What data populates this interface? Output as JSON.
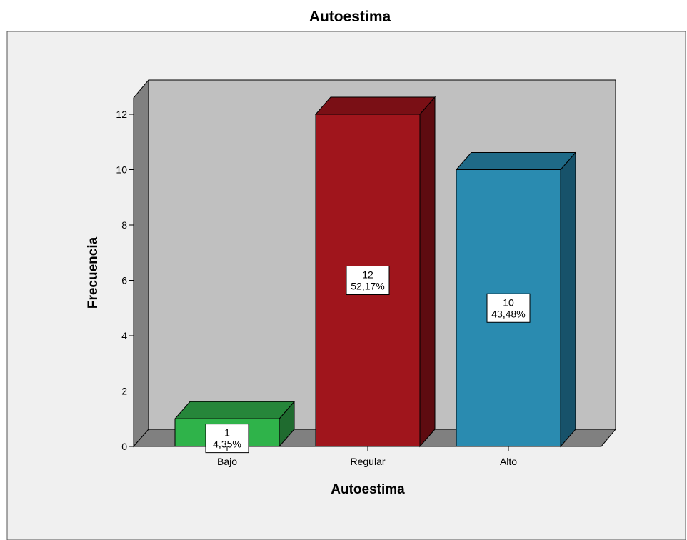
{
  "chart_data": {
    "type": "bar",
    "title": "Autoestima",
    "xlabel": "Autoestima",
    "ylabel": "Frecuencia",
    "categories": [
      "Bajo",
      "Regular",
      "Alto"
    ],
    "values": [
      1,
      12,
      10
    ],
    "percent_labels": [
      "4,35%",
      "52,17%",
      "43,48%"
    ],
    "ylim": [
      0,
      12
    ],
    "yticks": [
      0,
      2,
      4,
      6,
      8,
      10,
      12
    ],
    "three_d": true,
    "grid": false,
    "legend": "none",
    "colors": {
      "bars": [
        "#2fb34a",
        "#a0151c",
        "#2a8bb0"
      ],
      "bars_top": [
        "#26863a",
        "#7a0f15",
        "#1f6a87"
      ],
      "bars_side": [
        "#1f6b2f",
        "#5e0b10",
        "#17526a"
      ],
      "plot_background": "#c0c0c0",
      "chart_background": "#f0f0f0",
      "floor": "#808080",
      "left_wall": "#808080"
    }
  }
}
